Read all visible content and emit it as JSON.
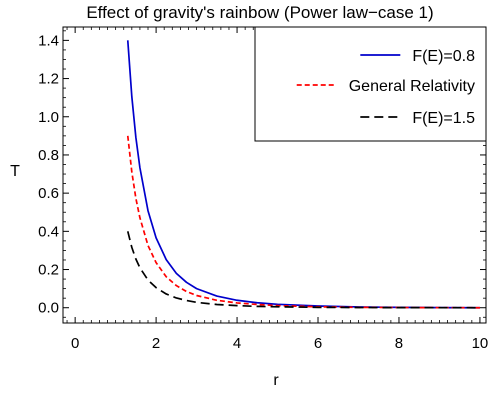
{
  "chart_data": {
    "type": "line",
    "title": "Effect of gravity's rainbow (Power law−case 1)",
    "xlabel": "r",
    "ylabel": "T",
    "xlim": [
      -0.3,
      10.15
    ],
    "ylim": [
      -0.08,
      1.47
    ],
    "x_ticks": [
      0,
      2,
      4,
      6,
      8,
      10
    ],
    "x_tick_labels": [
      "0",
      "2",
      "4",
      "6",
      "8",
      "10"
    ],
    "y_ticks": [
      0.0,
      0.2,
      0.4,
      0.6,
      0.8,
      1.0,
      1.2,
      1.4
    ],
    "y_tick_labels": [
      "0.0",
      "0.2",
      "0.4",
      "0.6",
      "0.8",
      "1.0",
      "1.2",
      "1.4"
    ],
    "legend_position": "top-right",
    "grid": false,
    "series": [
      {
        "name": "F(E)=0.8",
        "color": "#0000cc",
        "dash": "solid",
        "x": [
          1.3,
          1.4,
          1.5,
          1.6,
          1.8,
          2.0,
          2.25,
          2.5,
          2.75,
          3.0,
          3.5,
          4.0,
          4.5,
          5.0,
          6.0,
          7.0,
          8.0,
          9.0,
          10.0
        ],
        "y": [
          1.4,
          1.106,
          0.892,
          0.733,
          0.508,
          0.366,
          0.252,
          0.18,
          0.133,
          0.1,
          0.061,
          0.039,
          0.026,
          0.018,
          0.009,
          0.004,
          0.002,
          0.0007,
          0.0
        ]
      },
      {
        "name": "General Relativity",
        "color": "#ff0000",
        "dash": "short",
        "x": [
          1.3,
          1.4,
          1.5,
          1.6,
          1.8,
          2.0,
          2.25,
          2.5,
          2.75,
          3.0,
          3.5,
          4.0,
          4.5,
          5.0,
          6.0,
          7.0,
          8.0,
          9.0,
          10.0
        ],
        "y": [
          0.9,
          0.711,
          0.573,
          0.471,
          0.326,
          0.236,
          0.162,
          0.116,
          0.085,
          0.064,
          0.039,
          0.025,
          0.017,
          0.011,
          0.005,
          0.002,
          0.001,
          0.0003,
          0.0
        ]
      },
      {
        "name": "F(E)=1.5",
        "color": "#000000",
        "dash": "long",
        "x": [
          1.3,
          1.4,
          1.5,
          1.6,
          1.8,
          2.0,
          2.25,
          2.5,
          2.75,
          3.0,
          3.5,
          4.0,
          4.5,
          5.0,
          6.0,
          7.0,
          8.0,
          9.0,
          10.0
        ],
        "y": [
          0.4,
          0.316,
          0.255,
          0.209,
          0.145,
          0.105,
          0.072,
          0.051,
          0.038,
          0.028,
          0.017,
          0.011,
          0.007,
          0.005,
          0.002,
          0.001,
          0.0005,
          0.0002,
          0.0
        ]
      }
    ]
  }
}
